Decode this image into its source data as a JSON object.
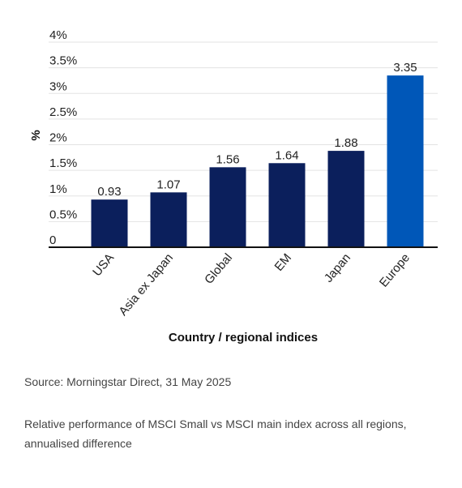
{
  "chart_data": {
    "type": "bar",
    "categories": [
      "USA",
      "Asia ex Japan",
      "Global",
      "EM",
      "Japan",
      "Europe"
    ],
    "values": [
      0.93,
      1.07,
      1.56,
      1.64,
      1.88,
      3.35
    ],
    "value_labels": [
      "0.93",
      "1.07",
      "1.56",
      "1.64",
      "1.88",
      "3.35"
    ],
    "highlight_index": 5,
    "ylim": [
      0,
      4
    ],
    "yticks": [
      0,
      0.5,
      1,
      1.5,
      2,
      2.5,
      3,
      3.5,
      4
    ],
    "ytick_labels": [
      "0",
      "0.5%",
      "1%",
      "1.5%",
      "2%",
      "2.5%",
      "3%",
      "3.5%",
      "4%"
    ],
    "ylabel": "%",
    "xlabel": "Country / regional indices",
    "grid": true,
    "colors": {
      "bar": "#0b1f5c",
      "highlight": "#0057b8",
      "grid": "#e3e3e3",
      "axis": "#111111"
    }
  },
  "footer": {
    "source": "Source: Morningstar Direct, 31 May 2025",
    "note": "Relative performance of MSCI Small vs MSCI main index across all regions, annualised difference"
  }
}
